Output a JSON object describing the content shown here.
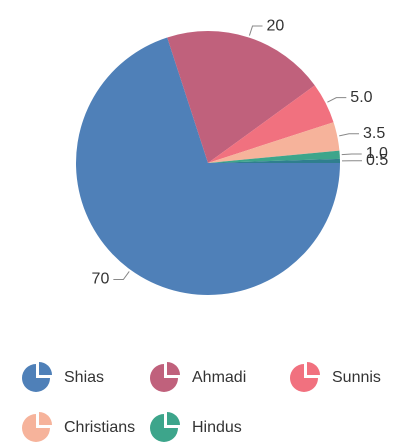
{
  "chart_data": {
    "type": "pie",
    "categories": [
      "Shias",
      "Ahmadi",
      "Sunnis",
      "Christians",
      "Hindus",
      null
    ],
    "values": [
      70,
      20,
      5.0,
      3.5,
      1.0,
      0.5
    ],
    "value_labels": [
      "70",
      "20",
      "5.0",
      "3.5",
      "1.0",
      "0.5"
    ],
    "colors": [
      "#4f80b8",
      "#c0617c",
      "#f1717f",
      "#f6b39b",
      "#3da58b",
      "#2f7f8e"
    ],
    "legend": "bottom"
  }
}
